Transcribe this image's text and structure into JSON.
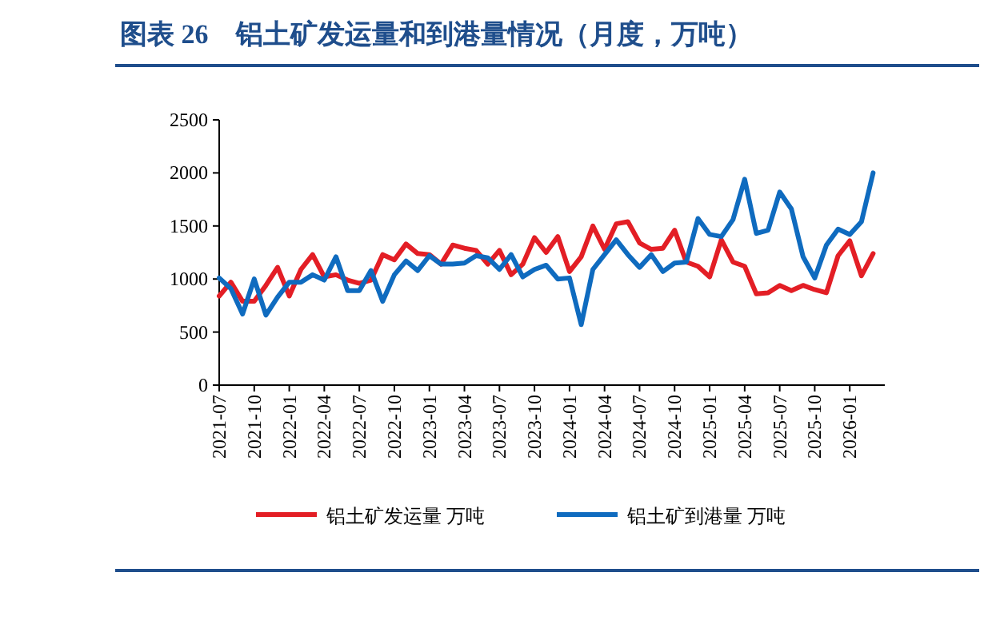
{
  "chart_data": {
    "type": "line",
    "title": "图表 26　铝土矿发运量和到港量情况（月度，万吨）",
    "categories": [
      "2021-07",
      null,
      null,
      "2021-10",
      null,
      null,
      "2022-01",
      null,
      null,
      "2022-04",
      null,
      null,
      "2022-07",
      null,
      null,
      "2022-10",
      null,
      null,
      "2023-01",
      null,
      null,
      "2023-04",
      null,
      null,
      "2023-07",
      null,
      null,
      "2023-10",
      null,
      null,
      "2024-01",
      null,
      null,
      "2024-04",
      null,
      null,
      "2024-07",
      null,
      null,
      "2024-10",
      null,
      null,
      "2025-01",
      null,
      null,
      "2025-04",
      null,
      null,
      "2025-07",
      null,
      null,
      "2025-10",
      null,
      null,
      "2026-01",
      null,
      null
    ],
    "ylim": [
      0,
      2500
    ],
    "yticks": [
      0,
      500,
      1000,
      1500,
      2000,
      2500
    ],
    "grid": false,
    "legend": "bottom",
    "marker": "none",
    "line_style": "solid",
    "series": [
      {
        "name": "铝土矿发运量 万吨",
        "color": "#e31e25",
        "values": [
          840,
          970,
          790,
          790,
          940,
          1110,
          840,
          1090,
          1230,
          1020,
          1040,
          990,
          960,
          990,
          1230,
          1180,
          1330,
          1240,
          1230,
          1140,
          1320,
          1290,
          1270,
          1140,
          1270,
          1040,
          1140,
          1390,
          1250,
          1400,
          1070,
          1210,
          1500,
          1280,
          1520,
          1540,
          1340,
          1280,
          1290,
          1460,
          1160,
          1120,
          1020,
          1370,
          1160,
          1120,
          860,
          870,
          940,
          890,
          940,
          900,
          870,
          1220,
          1360,
          1030,
          1240
        ]
      },
      {
        "name": "铝土矿到港量 万吨",
        "color": "#0f6bbf",
        "values": [
          1010,
          910,
          670,
          1000,
          660,
          830,
          970,
          970,
          1040,
          990,
          1210,
          890,
          890,
          1080,
          790,
          1040,
          1170,
          1080,
          1220,
          1140,
          1140,
          1150,
          1220,
          1200,
          1090,
          1230,
          1020,
          1090,
          1130,
          1000,
          1010,
          570,
          1090,
          1230,
          1370,
          1230,
          1110,
          1230,
          1070,
          1150,
          1160,
          1570,
          1420,
          1400,
          1560,
          1940,
          1430,
          1460,
          1820,
          1660,
          1210,
          1010,
          1320,
          1470,
          1420,
          1540,
          2000
        ]
      }
    ]
  }
}
